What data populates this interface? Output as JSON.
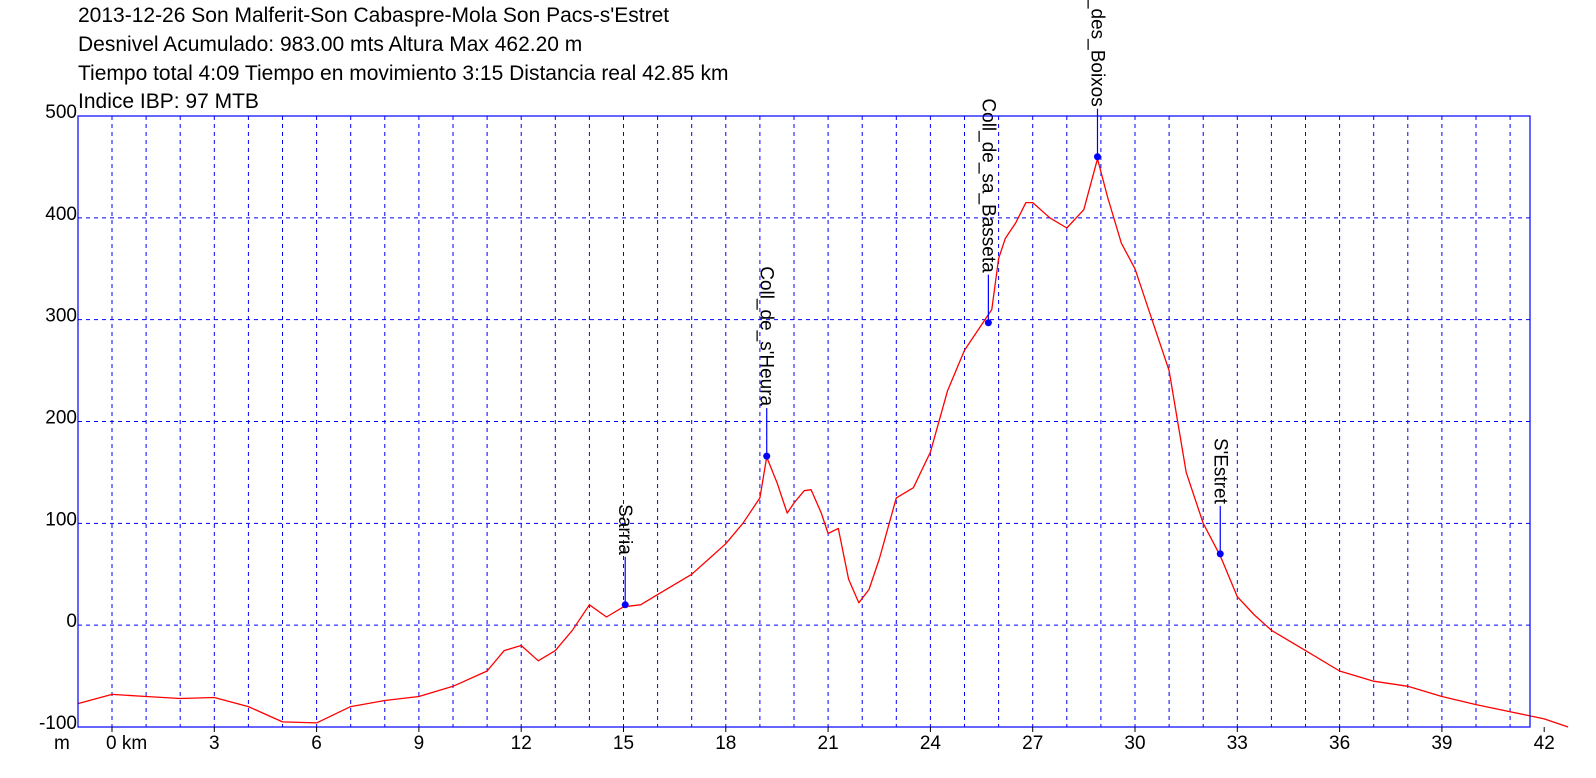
{
  "header": {
    "title": "2013-12-26 Son Malferit-Son Cabaspre-Mola Son Pacs-s'Estret",
    "line2": "Desnivel Acumulado: 983.00 mts  Altura Max 462.20 m",
    "line3": "Tiempo total 4:09 Tiempo en movimiento 3:15 Distancia real 42.85 km",
    "line4": "Indice IBP: 97 MTB"
  },
  "chart_data": {
    "type": "line",
    "xlabel": "km",
    "ylabel": "m",
    "xlim": [
      -1,
      43
    ],
    "ylim": [
      -100,
      500
    ],
    "x_ticks": [
      0,
      3,
      6,
      9,
      12,
      15,
      18,
      21,
      24,
      27,
      30,
      33,
      36,
      39,
      42
    ],
    "x_tick_labels": [
      "0 km",
      "3",
      "6",
      "9",
      "12",
      "15",
      "18",
      "21",
      "24",
      "27",
      "30",
      "33",
      "36",
      "39",
      "42"
    ],
    "y_ticks": [
      -100,
      0,
      100,
      200,
      300,
      400,
      500
    ],
    "y_tick_labels": [
      "-100",
      "0",
      "100",
      "200",
      "300",
      "400",
      "500"
    ],
    "grid": true,
    "colors": {
      "line": "#ff0000",
      "axis": "#0000ff",
      "grid": "#0000ff",
      "marker": "#0000ff"
    },
    "series": [
      {
        "x": [
          -1,
          0,
          1,
          2,
          3,
          4,
          5,
          6,
          7,
          8,
          9,
          10,
          11,
          11.5,
          12,
          12.5,
          13,
          13.5,
          14,
          14.5,
          15,
          15.5,
          16,
          17,
          17.5,
          18,
          18.5,
          19,
          19.2,
          19.5,
          19.8,
          20,
          20.3,
          20.5,
          20.8,
          21,
          21.3,
          21.6,
          21.9,
          22.2,
          22.5,
          23,
          23.5,
          24,
          24.5,
          25,
          25.5,
          25.8,
          26,
          26.2,
          26.5,
          26.8,
          27,
          27.5,
          28,
          28.5,
          28.9,
          29.2,
          29.6,
          30,
          30.5,
          31,
          31.5,
          32,
          32.5,
          33,
          33.5,
          34,
          35,
          36,
          37,
          38,
          39,
          40,
          41,
          42,
          42.7
        ],
        "y": [
          -77,
          -68,
          -70,
          -72,
          -71,
          -80,
          -95,
          -96,
          -80,
          -74,
          -70,
          -60,
          -45,
          -25,
          -20,
          -35,
          -25,
          -5,
          20,
          8,
          18,
          20,
          30,
          50,
          65,
          80,
          100,
          125,
          165,
          140,
          110,
          120,
          132,
          133,
          110,
          90,
          95,
          45,
          22,
          35,
          65,
          125,
          135,
          170,
          230,
          270,
          295,
          310,
          360,
          380,
          395,
          415,
          415,
          400,
          390,
          408,
          458,
          420,
          375,
          350,
          300,
          250,
          150,
          100,
          68,
          28,
          10,
          -5,
          -25,
          -45,
          -55,
          -60,
          -70,
          -78,
          -85,
          -92,
          -100
        ]
      }
    ],
    "waypoints": [
      {
        "name": "Sarria",
        "x": 15.05,
        "y": 20
      },
      {
        "name": "Coll_de_s'Heura",
        "x": 19.2,
        "y": 166
      },
      {
        "name": "Coll_de_sa_Basseta",
        "x": 25.7,
        "y": 297
      },
      {
        "name": "Puig_des_Boixos",
        "x": 28.9,
        "y": 460
      },
      {
        "name": "S'Estret",
        "x": 32.5,
        "y": 70
      }
    ]
  }
}
